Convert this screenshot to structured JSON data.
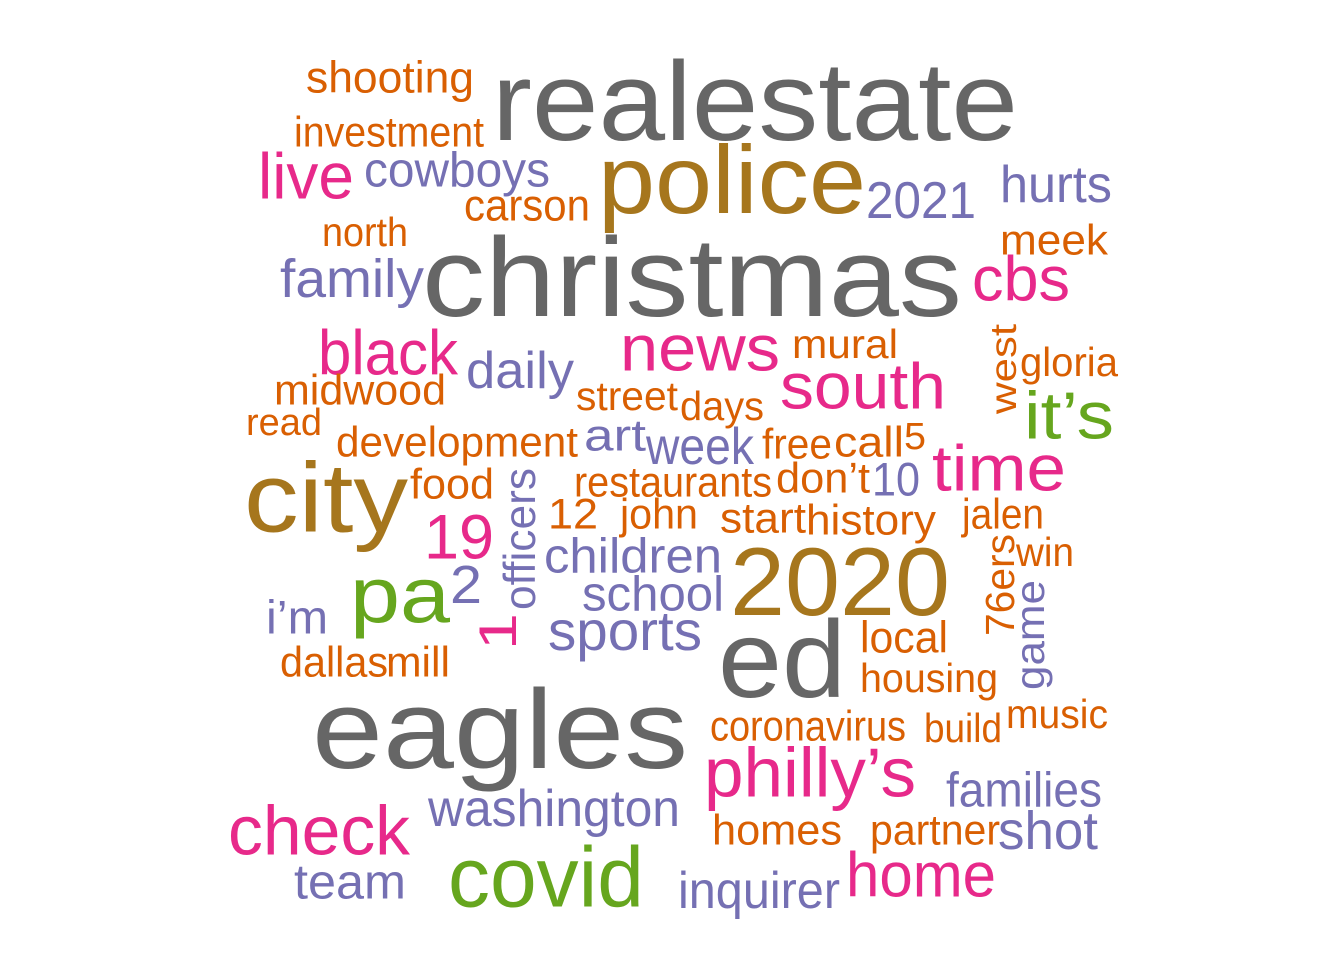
{
  "palette": {
    "gray": "#666666",
    "gold": "#a6761d",
    "pink": "#e7298a",
    "purple": "#7570b3",
    "orange": "#d95f02",
    "green": "#66a61e"
  },
  "words": [
    {
      "text": "realestate",
      "color": "gray"
    },
    {
      "text": "christmas",
      "color": "gray"
    },
    {
      "text": "eagles",
      "color": "gray"
    },
    {
      "text": "ed",
      "color": "gray"
    },
    {
      "text": "police",
      "color": "gold"
    },
    {
      "text": "city",
      "color": "gold"
    },
    {
      "text": "2020",
      "color": "gold"
    },
    {
      "text": "covid",
      "color": "green"
    },
    {
      "text": "pa",
      "color": "green"
    },
    {
      "text": "it’s",
      "color": "green"
    },
    {
      "text": "news",
      "color": "pink"
    },
    {
      "text": "south",
      "color": "pink"
    },
    {
      "text": "philly’s",
      "color": "pink"
    },
    {
      "text": "check",
      "color": "pink"
    },
    {
      "text": "home",
      "color": "pink"
    },
    {
      "text": "time",
      "color": "pink"
    },
    {
      "text": "cbs",
      "color": "pink"
    },
    {
      "text": "live",
      "color": "pink"
    },
    {
      "text": "black",
      "color": "pink"
    },
    {
      "text": "19",
      "color": "pink"
    },
    {
      "text": "1",
      "color": "pink"
    },
    {
      "text": "washington",
      "color": "purple"
    },
    {
      "text": "sports",
      "color": "purple"
    },
    {
      "text": "children",
      "color": "purple"
    },
    {
      "text": "school",
      "color": "purple"
    },
    {
      "text": "cowboys",
      "color": "purple"
    },
    {
      "text": "family",
      "color": "purple"
    },
    {
      "text": "hurts",
      "color": "purple"
    },
    {
      "text": "2021",
      "color": "purple"
    },
    {
      "text": "daily",
      "color": "purple"
    },
    {
      "text": "week",
      "color": "purple"
    },
    {
      "text": "art",
      "color": "purple"
    },
    {
      "text": "team",
      "color": "purple"
    },
    {
      "text": "inquirer",
      "color": "purple"
    },
    {
      "text": "families",
      "color": "purple"
    },
    {
      "text": "shot",
      "color": "purple"
    },
    {
      "text": "officers",
      "color": "purple"
    },
    {
      "text": "2",
      "color": "purple"
    },
    {
      "text": "i’m",
      "color": "purple"
    },
    {
      "text": "10",
      "color": "purple"
    },
    {
      "text": "game",
      "color": "purple"
    },
    {
      "text": "shooting",
      "color": "orange"
    },
    {
      "text": "investment",
      "color": "orange"
    },
    {
      "text": "carson",
      "color": "orange"
    },
    {
      "text": "north",
      "color": "orange"
    },
    {
      "text": "meek",
      "color": "orange"
    },
    {
      "text": "mural",
      "color": "orange"
    },
    {
      "text": "midwood",
      "color": "orange"
    },
    {
      "text": "read",
      "color": "orange"
    },
    {
      "text": "street",
      "color": "orange"
    },
    {
      "text": "days",
      "color": "orange"
    },
    {
      "text": "development",
      "color": "orange"
    },
    {
      "text": "free",
      "color": "orange"
    },
    {
      "text": "call",
      "color": "orange"
    },
    {
      "text": "5",
      "color": "orange"
    },
    {
      "text": "food",
      "color": "orange"
    },
    {
      "text": "restaurants",
      "color": "orange"
    },
    {
      "text": "don’t",
      "color": "orange"
    },
    {
      "text": "12",
      "color": "orange"
    },
    {
      "text": "john",
      "color": "orange"
    },
    {
      "text": "start",
      "color": "orange"
    },
    {
      "text": "history",
      "color": "orange"
    },
    {
      "text": "jalen",
      "color": "orange"
    },
    {
      "text": "win",
      "color": "orange"
    },
    {
      "text": "gloria",
      "color": "orange"
    },
    {
      "text": "west",
      "color": "orange"
    },
    {
      "text": "76ers",
      "color": "orange"
    },
    {
      "text": "local",
      "color": "orange"
    },
    {
      "text": "dallas",
      "color": "orange"
    },
    {
      "text": "mill",
      "color": "orange"
    },
    {
      "text": "housing",
      "color": "orange"
    },
    {
      "text": "coronavirus",
      "color": "orange"
    },
    {
      "text": "build",
      "color": "orange"
    },
    {
      "text": "music",
      "color": "orange"
    },
    {
      "text": "homes",
      "color": "orange"
    },
    {
      "text": "partner",
      "color": "orange"
    }
  ]
}
